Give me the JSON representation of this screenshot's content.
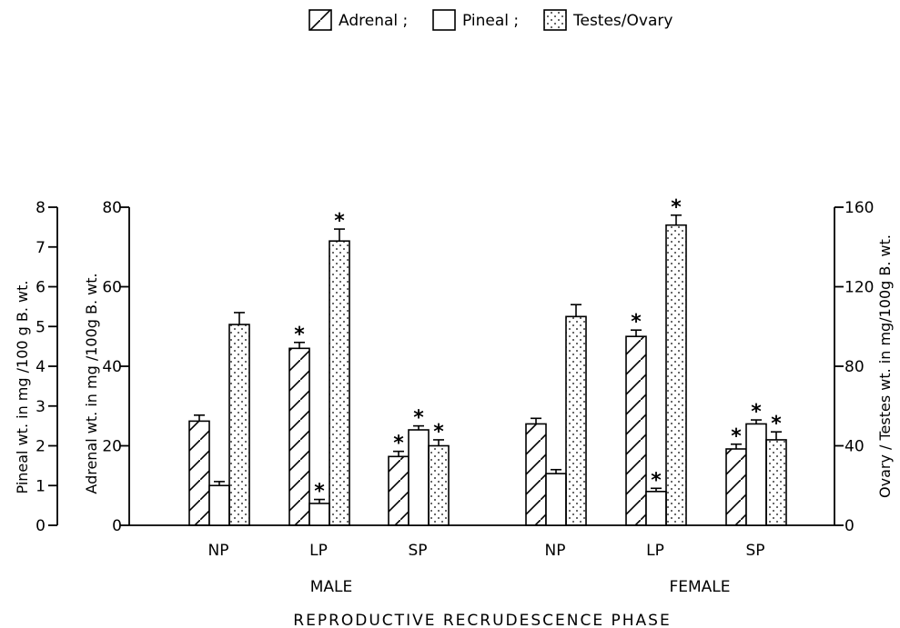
{
  "chart_data": {
    "type": "bar",
    "legend": {
      "placement": "top-center",
      "items": [
        {
          "key": "adrenal",
          "label": "Adrenal ;",
          "pattern": "hatch"
        },
        {
          "key": "pineal",
          "label": "Pineal ;",
          "pattern": "plain"
        },
        {
          "key": "gonad",
          "label": "Testes/Ovary",
          "pattern": "dots"
        }
      ]
    },
    "xlabel": "REPRODUCTIVE RECRUDESCENCE PHASE",
    "groups": [
      {
        "label": "MALE",
        "phases": [
          "NP",
          "LP",
          "SP"
        ]
      },
      {
        "label": "FEMALE",
        "phases": [
          "NP",
          "LP",
          "SP"
        ]
      }
    ],
    "axes": {
      "pineal": {
        "label": "Pineal wt. in mg /100 g B. wt.",
        "ylim": [
          0,
          8
        ],
        "ticks": [
          "0",
          "1",
          "2",
          "3",
          "4",
          "5",
          "6",
          "7",
          "8"
        ]
      },
      "adrenal": {
        "label": "Adrenal wt. in mg /100g B. wt.",
        "ylim": [
          0,
          80
        ],
        "ticks": [
          "0",
          "20",
          "40",
          "60",
          "80"
        ]
      },
      "gonad": {
        "label": "Ovary / Testes wt. in mg/100g B. wt.",
        "ylim": [
          0,
          160
        ],
        "ticks": [
          "0",
          "40",
          "80",
          "120",
          "160"
        ]
      }
    },
    "series": [
      {
        "name": "Adrenal",
        "axis": "adrenal",
        "values": [
          26.2,
          44.5,
          17.3,
          25.5,
          47.5,
          19.2
        ],
        "errors": [
          1.5,
          1.5,
          1.3,
          1.4,
          1.6,
          1.2
        ],
        "significant": [
          false,
          true,
          true,
          false,
          true,
          true
        ]
      },
      {
        "name": "Pineal",
        "axis": "pineal",
        "values": [
          1.0,
          0.55,
          2.4,
          1.3,
          0.85,
          2.55
        ],
        "errors": [
          0.1,
          0.1,
          0.1,
          0.1,
          0.08,
          0.1
        ],
        "significant": [
          false,
          true,
          true,
          false,
          true,
          true
        ]
      },
      {
        "name": "Testes/Ovary",
        "axis": "gonad",
        "values": [
          101,
          143,
          40,
          105,
          151,
          43
        ],
        "errors": [
          6,
          6,
          3,
          6,
          5,
          4
        ],
        "significant": [
          false,
          true,
          true,
          false,
          true,
          true
        ]
      }
    ],
    "significance_marker": "*"
  }
}
